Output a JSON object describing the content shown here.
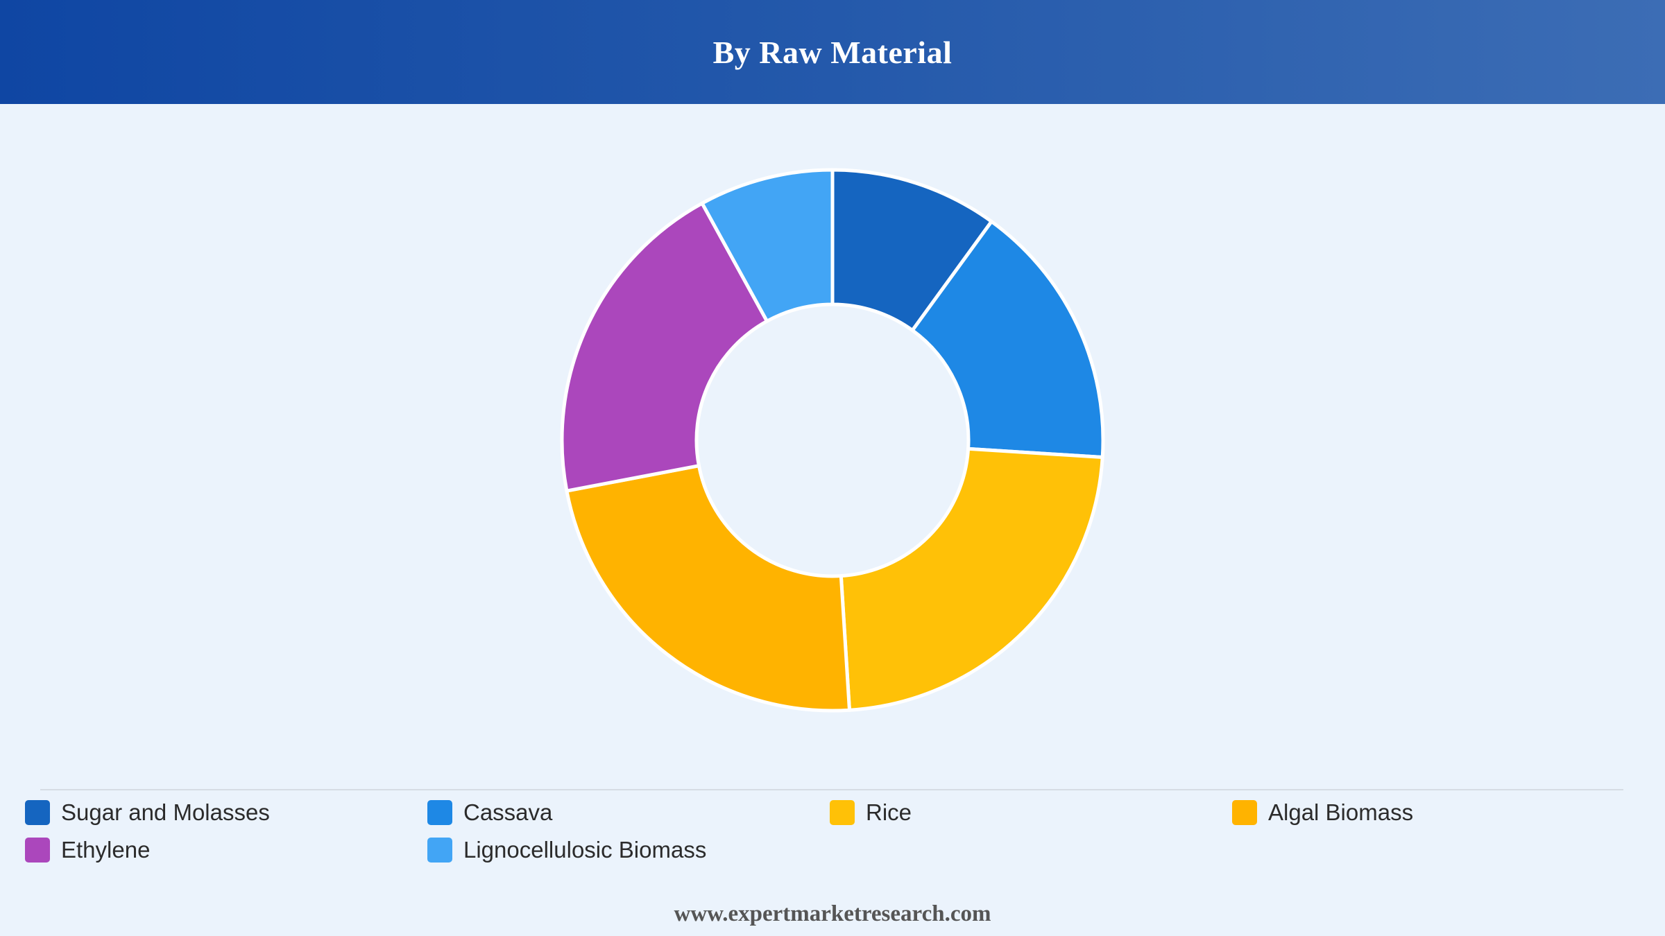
{
  "header": {
    "title": "By Raw Material"
  },
  "footer": {
    "url": "www.expertmarketresearch.com"
  },
  "chart_data": {
    "type": "pie",
    "variant": "donut",
    "title": "By Raw Material",
    "legend_position": "bottom",
    "series": [
      {
        "name": "Sugar and Molasses",
        "value": 10,
        "color": "#1565c0"
      },
      {
        "name": "Cassava",
        "value": 16,
        "color": "#1e88e5"
      },
      {
        "name": "Rice",
        "value": 23,
        "color": "#ffc107"
      },
      {
        "name": "Algal Biomass",
        "value": 23,
        "color": "#ffb300"
      },
      {
        "name": "Ethylene",
        "value": 20,
        "color": "#ab47bc"
      },
      {
        "name": "Lignocellulosic Biomass",
        "value": 8,
        "color": "#42a5f5"
      }
    ]
  }
}
